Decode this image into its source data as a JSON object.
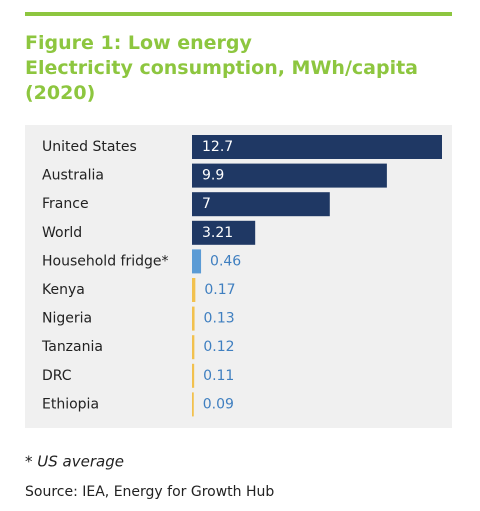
{
  "chart_data": {
    "type": "bar",
    "orientation": "horizontal",
    "title": "Figure 1: Low energy\nElectricity consumption, MWh/capita\n(2020)",
    "categories": [
      "United States",
      "Australia",
      "France",
      "World",
      "Household fridge*",
      "Kenya",
      "Nigeria",
      "Tanzania",
      "DRC",
      "Ethiopia"
    ],
    "values": [
      12.7,
      9.9,
      7,
      3.21,
      0.46,
      0.17,
      0.13,
      0.12,
      0.11,
      0.09
    ],
    "colors": [
      "#1f3864",
      "#1f3864",
      "#1f3864",
      "#1f3864",
      "#5b9bd5",
      "#f2c14e",
      "#f2c14e",
      "#f2c14e",
      "#f2c14e",
      "#f2c14e"
    ],
    "footnote": "* US average",
    "source": "Source: IEA, Energy for Growth Hub"
  }
}
